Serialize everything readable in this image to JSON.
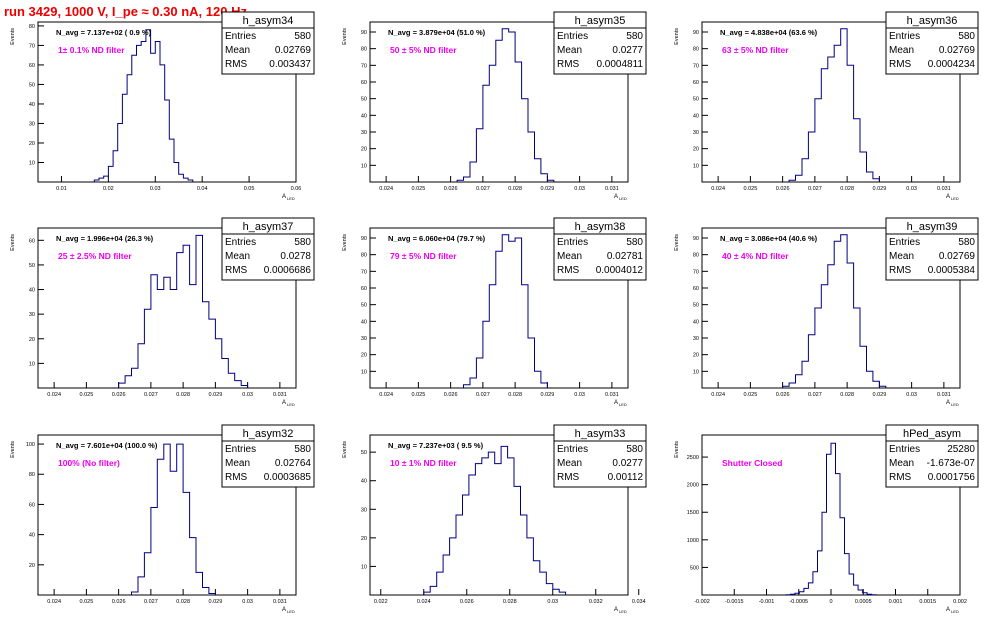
{
  "page_title": "run 3429,  1000 V, I_pe ≈ 0.30 nA, 120 Hz",
  "colors": {
    "histogram": "#000080",
    "title": "#ee0000",
    "annotation": "#ee00ee",
    "axis": "#000000"
  },
  "stats_labels": {
    "entries": "Entries",
    "mean": "Mean",
    "rms": "RMS"
  },
  "y_axis_label": "Events",
  "x_axis_label_main": "A",
  "x_axis_label_sub": "LED",
  "chart_data": [
    {
      "type": "histogram",
      "name": "h_asym34",
      "stats": {
        "entries": "580",
        "mean": "0.02769",
        "rms": "0.003437"
      },
      "navg": "N_avg = 7.137e+02 ( 0.9 %)",
      "annotation": "1± 0.1% ND filter",
      "xlim": [
        0.005,
        0.06
      ],
      "ylim": [
        0,
        82
      ],
      "xticks": [
        "0.01",
        "0.02",
        "0.03",
        "0.04",
        "0.05",
        "0.06"
      ],
      "yticks": [
        "10",
        "20",
        "30",
        "40",
        "50",
        "60",
        "70",
        "80"
      ],
      "bins": [
        [
          0.017,
          0.018,
          1
        ],
        [
          0.018,
          0.019,
          2
        ],
        [
          0.019,
          0.02,
          3
        ],
        [
          0.02,
          0.021,
          8
        ],
        [
          0.021,
          0.022,
          16
        ],
        [
          0.022,
          0.023,
          30
        ],
        [
          0.023,
          0.024,
          45
        ],
        [
          0.024,
          0.025,
          55
        ],
        [
          0.025,
          0.026,
          65
        ],
        [
          0.026,
          0.027,
          70
        ],
        [
          0.027,
          0.028,
          72
        ],
        [
          0.028,
          0.029,
          78
        ],
        [
          0.029,
          0.03,
          66
        ],
        [
          0.03,
          0.031,
          72
        ],
        [
          0.031,
          0.032,
          60
        ],
        [
          0.032,
          0.033,
          42
        ],
        [
          0.033,
          0.034,
          22
        ],
        [
          0.034,
          0.035,
          10
        ],
        [
          0.035,
          0.036,
          4
        ],
        [
          0.036,
          0.037,
          2
        ],
        [
          0.037,
          0.038,
          1
        ]
      ]
    },
    {
      "type": "histogram",
      "name": "h_asym35",
      "stats": {
        "entries": "580",
        "mean": "0.0277",
        "rms": "0.0004811"
      },
      "navg": "N_avg = 3.879e+04 (51.0 %)",
      "annotation": "50 ± 5% ND filter",
      "xlim": [
        0.0235,
        0.0315
      ],
      "ylim": [
        0,
        96
      ],
      "xticks": [
        "0.024",
        "0.025",
        "0.026",
        "0.027",
        "0.028",
        "0.029",
        "0.03",
        "0.031"
      ],
      "yticks": [
        "10",
        "20",
        "30",
        "40",
        "50",
        "60",
        "70",
        "80",
        "90"
      ],
      "bins": [
        [
          0.0262,
          0.0264,
          1
        ],
        [
          0.0264,
          0.0266,
          3
        ],
        [
          0.0266,
          0.0268,
          12
        ],
        [
          0.0268,
          0.027,
          32
        ],
        [
          0.027,
          0.0272,
          58
        ],
        [
          0.0272,
          0.0274,
          70
        ],
        [
          0.0274,
          0.0276,
          85
        ],
        [
          0.0276,
          0.0278,
          92
        ],
        [
          0.0278,
          0.028,
          90
        ],
        [
          0.028,
          0.0282,
          72
        ],
        [
          0.0282,
          0.0284,
          50
        ],
        [
          0.0284,
          0.0286,
          30
        ],
        [
          0.0286,
          0.0288,
          14
        ],
        [
          0.0288,
          0.029,
          5
        ],
        [
          0.029,
          0.0292,
          1
        ]
      ]
    },
    {
      "type": "histogram",
      "name": "h_asym36",
      "stats": {
        "entries": "580",
        "mean": "0.02769",
        "rms": "0.0004234"
      },
      "navg": "N_avg = 4.838e+04 (63.6 %)",
      "annotation": "63 ± 5% ND filter",
      "xlim": [
        0.0235,
        0.0315
      ],
      "ylim": [
        0,
        96
      ],
      "xticks": [
        "0.024",
        "0.025",
        "0.026",
        "0.027",
        "0.028",
        "0.029",
        "0.03",
        "0.031"
      ],
      "yticks": [
        "10",
        "20",
        "30",
        "40",
        "50",
        "60",
        "70",
        "80",
        "90"
      ],
      "bins": [
        [
          0.0262,
          0.0264,
          1
        ],
        [
          0.0264,
          0.0266,
          4
        ],
        [
          0.0266,
          0.0268,
          14
        ],
        [
          0.0268,
          0.027,
          30
        ],
        [
          0.027,
          0.0272,
          50
        ],
        [
          0.0272,
          0.0274,
          68
        ],
        [
          0.0274,
          0.0276,
          75
        ],
        [
          0.0276,
          0.0278,
          82
        ],
        [
          0.0278,
          0.028,
          92
        ],
        [
          0.028,
          0.0282,
          70
        ],
        [
          0.0282,
          0.0284,
          38
        ],
        [
          0.0284,
          0.0286,
          18
        ],
        [
          0.0286,
          0.0288,
          6
        ],
        [
          0.0288,
          0.029,
          2
        ]
      ]
    },
    {
      "type": "histogram",
      "name": "h_asym37",
      "stats": {
        "entries": "580",
        "mean": "0.0278",
        "rms": "0.0006686"
      },
      "navg": "N_avg = 1.996e+04 (26.3 %)",
      "annotation": "25 ± 2.5% ND filter",
      "xlim": [
        0.0235,
        0.0315
      ],
      "ylim": [
        0,
        65
      ],
      "xticks": [
        "0.024",
        "0.025",
        "0.026",
        "0.027",
        "0.028",
        "0.029",
        "0.03",
        "0.031"
      ],
      "yticks": [
        "10",
        "20",
        "30",
        "40",
        "50",
        "60"
      ],
      "bins": [
        [
          0.026,
          0.0262,
          2
        ],
        [
          0.0262,
          0.0264,
          5
        ],
        [
          0.0264,
          0.0266,
          8
        ],
        [
          0.0266,
          0.0268,
          18
        ],
        [
          0.0268,
          0.027,
          32
        ],
        [
          0.027,
          0.0272,
          46
        ],
        [
          0.0272,
          0.0274,
          40
        ],
        [
          0.0274,
          0.0276,
          45
        ],
        [
          0.0276,
          0.0278,
          40
        ],
        [
          0.0278,
          0.028,
          55
        ],
        [
          0.028,
          0.0282,
          58
        ],
        [
          0.0282,
          0.0284,
          42
        ],
        [
          0.0284,
          0.0286,
          62
        ],
        [
          0.0286,
          0.0288,
          35
        ],
        [
          0.0288,
          0.029,
          28
        ],
        [
          0.029,
          0.0292,
          20
        ],
        [
          0.0292,
          0.0294,
          12
        ],
        [
          0.0294,
          0.0296,
          6
        ],
        [
          0.0296,
          0.0298,
          3
        ],
        [
          0.0298,
          0.03,
          1
        ]
      ]
    },
    {
      "type": "histogram",
      "name": "h_asym38",
      "stats": {
        "entries": "580",
        "mean": "0.02781",
        "rms": "0.0004012"
      },
      "navg": "N_avg = 6.060e+04 (79.7 %)",
      "annotation": "79 ± 5% ND filter",
      "xlim": [
        0.0235,
        0.0315
      ],
      "ylim": [
        0,
        96
      ],
      "xticks": [
        "0.024",
        "0.025",
        "0.026",
        "0.027",
        "0.028",
        "0.029",
        "0.03",
        "0.031"
      ],
      "yticks": [
        "10",
        "20",
        "30",
        "40",
        "50",
        "60",
        "70",
        "80",
        "90"
      ],
      "bins": [
        [
          0.0264,
          0.0266,
          2
        ],
        [
          0.0266,
          0.0268,
          6
        ],
        [
          0.0268,
          0.027,
          18
        ],
        [
          0.027,
          0.0272,
          40
        ],
        [
          0.0272,
          0.0274,
          62
        ],
        [
          0.0274,
          0.0276,
          82
        ],
        [
          0.0276,
          0.0278,
          92
        ],
        [
          0.0278,
          0.028,
          88
        ],
        [
          0.028,
          0.0282,
          90
        ],
        [
          0.0282,
          0.0284,
          62
        ],
        [
          0.0284,
          0.0286,
          30
        ],
        [
          0.0286,
          0.0288,
          10
        ],
        [
          0.0288,
          0.029,
          3
        ]
      ]
    },
    {
      "type": "histogram",
      "name": "h_asym39",
      "stats": {
        "entries": "580",
        "mean": "0.02769",
        "rms": "0.0005384"
      },
      "navg": "N_avg = 3.086e+04 (40.6 %)",
      "annotation": "40 ± 4% ND filter",
      "xlim": [
        0.0235,
        0.0315
      ],
      "ylim": [
        0,
        96
      ],
      "xticks": [
        "0.024",
        "0.025",
        "0.026",
        "0.027",
        "0.028",
        "0.029",
        "0.03",
        "0.031"
      ],
      "yticks": [
        "10",
        "20",
        "30",
        "40",
        "50",
        "60",
        "70",
        "80",
        "90"
      ],
      "bins": [
        [
          0.026,
          0.0262,
          1
        ],
        [
          0.0262,
          0.0264,
          3
        ],
        [
          0.0264,
          0.0266,
          8
        ],
        [
          0.0266,
          0.0268,
          16
        ],
        [
          0.0268,
          0.027,
          32
        ],
        [
          0.027,
          0.0272,
          48
        ],
        [
          0.0272,
          0.0274,
          62
        ],
        [
          0.0274,
          0.0276,
          74
        ],
        [
          0.0276,
          0.0278,
          88
        ],
        [
          0.0278,
          0.028,
          92
        ],
        [
          0.028,
          0.0282,
          75
        ],
        [
          0.0282,
          0.0284,
          48
        ],
        [
          0.0284,
          0.0286,
          25
        ],
        [
          0.0286,
          0.0288,
          10
        ],
        [
          0.0288,
          0.029,
          4
        ],
        [
          0.029,
          0.0292,
          1
        ]
      ]
    },
    {
      "type": "histogram",
      "name": "h_asym32",
      "stats": {
        "entries": "580",
        "mean": "0.02764",
        "rms": "0.0003685"
      },
      "navg": "N_avg = 7.601e+04 (100.0 %)",
      "annotation": "100% (No filter)",
      "xlim": [
        0.0235,
        0.0315
      ],
      "ylim": [
        0,
        106
      ],
      "xticks": [
        "0.024",
        "0.025",
        "0.026",
        "0.027",
        "0.028",
        "0.029",
        "0.03",
        "0.031"
      ],
      "yticks": [
        "20",
        "40",
        "60",
        "80",
        "100"
      ],
      "bins": [
        [
          0.0264,
          0.0266,
          2
        ],
        [
          0.0266,
          0.0268,
          12
        ],
        [
          0.0268,
          0.027,
          28
        ],
        [
          0.027,
          0.0272,
          58
        ],
        [
          0.0272,
          0.0274,
          90
        ],
        [
          0.0274,
          0.0276,
          100
        ],
        [
          0.0276,
          0.0278,
          82
        ],
        [
          0.0278,
          0.028,
          100
        ],
        [
          0.028,
          0.0282,
          68
        ],
        [
          0.0282,
          0.0284,
          38
        ],
        [
          0.0284,
          0.0286,
          15
        ],
        [
          0.0286,
          0.0288,
          5
        ],
        [
          0.0288,
          0.029,
          1
        ]
      ]
    },
    {
      "type": "histogram",
      "name": "h_asym33",
      "stats": {
        "entries": "580",
        "mean": "0.0277",
        "rms": "0.00112"
      },
      "navg": "N_avg = 7.237e+03 ( 9.5 %)",
      "annotation": "10 ± 1% ND filter",
      "xlim": [
        0.0215,
        0.0335
      ],
      "ylim": [
        0,
        56
      ],
      "xticks": [
        "0.022",
        "0.024",
        "0.026",
        "0.028",
        "0.03",
        "0.032",
        "0.034"
      ],
      "yticks": [
        "10",
        "20",
        "30",
        "40",
        "50"
      ],
      "bins": [
        [
          0.024,
          0.0243,
          1
        ],
        [
          0.0243,
          0.0246,
          3
        ],
        [
          0.0246,
          0.0249,
          8
        ],
        [
          0.0249,
          0.0252,
          14
        ],
        [
          0.0252,
          0.0255,
          20
        ],
        [
          0.0255,
          0.0258,
          28
        ],
        [
          0.0258,
          0.0261,
          35
        ],
        [
          0.0261,
          0.0264,
          42
        ],
        [
          0.0264,
          0.0267,
          46
        ],
        [
          0.0267,
          0.027,
          48
        ],
        [
          0.027,
          0.0273,
          50
        ],
        [
          0.0273,
          0.0276,
          46
        ],
        [
          0.0276,
          0.0279,
          52
        ],
        [
          0.0279,
          0.0282,
          48
        ],
        [
          0.0282,
          0.0285,
          38
        ],
        [
          0.0285,
          0.0288,
          28
        ],
        [
          0.0288,
          0.0291,
          20
        ],
        [
          0.0291,
          0.0294,
          12
        ],
        [
          0.0294,
          0.0297,
          8
        ],
        [
          0.0297,
          0.03,
          4
        ],
        [
          0.03,
          0.0303,
          2
        ],
        [
          0.0303,
          0.0306,
          1
        ]
      ]
    },
    {
      "type": "histogram",
      "name": "hPed_asym",
      "stats": {
        "entries": "25280",
        "mean": "-1.673e-07",
        "rms": "0.0001756"
      },
      "navg": "",
      "annotation": "Shutter Closed",
      "xlim": [
        -0.002,
        0.002
      ],
      "ylim": [
        0,
        2900
      ],
      "xticks": [
        "-0.002",
        "-0.0015",
        "-0.001",
        "-0.0005",
        "0",
        "0.0005",
        "0.001",
        "0.0015",
        "0.002"
      ],
      "yticks": [
        "500",
        "1000",
        "1500",
        "2000",
        "2500"
      ],
      "bins": [
        [
          -0.0007,
          -0.00063,
          5
        ],
        [
          -0.00063,
          -0.00056,
          15
        ],
        [
          -0.00056,
          -0.00049,
          30
        ],
        [
          -0.00049,
          -0.00042,
          60
        ],
        [
          -0.00042,
          -0.00035,
          120
        ],
        [
          -0.00035,
          -0.00028,
          220
        ],
        [
          -0.00028,
          -0.00021,
          420
        ],
        [
          -0.00021,
          -0.00014,
          800
        ],
        [
          -0.00014,
          -7e-05,
          1500
        ],
        [
          -7e-05,
          0.0,
          2550
        ],
        [
          0.0,
          7e-05,
          2750
        ],
        [
          7e-05,
          0.00014,
          2200
        ],
        [
          0.00014,
          0.00021,
          1400
        ],
        [
          0.00021,
          0.00028,
          750
        ],
        [
          0.00028,
          0.00035,
          380
        ],
        [
          0.00035,
          0.00042,
          180
        ],
        [
          0.00042,
          0.00049,
          90
        ],
        [
          0.00049,
          0.00056,
          40
        ],
        [
          0.00056,
          0.00063,
          15
        ],
        [
          0.00063,
          0.0007,
          5
        ]
      ]
    }
  ]
}
